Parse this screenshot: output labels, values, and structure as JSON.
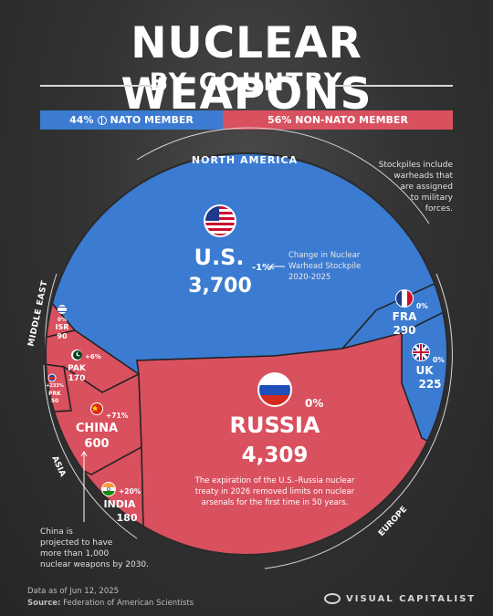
{
  "title_line1": "NUCLEAR WEAPONS",
  "title_line2": "BY COUNTRY",
  "membership": {
    "nato_pct": "44%",
    "nato_label": "NATO MEMBER",
    "non_nato_pct": "56%",
    "non_nato_label": "NON-NATO MEMBER",
    "nato_color": "#3b7bd1",
    "non_nato_color": "#d9505f"
  },
  "regions": {
    "north_america": "NORTH AMERICA",
    "middle_east": "MIDDLE EAST",
    "asia": "ASIA",
    "europe": "EUROPE"
  },
  "chart_data": {
    "type": "voronoi-treemap",
    "title": "NUCLEAR WEAPONS BY COUNTRY",
    "unit": "nuclear warheads",
    "change_period": "2020-2025",
    "countries": [
      {
        "name": "U.S.",
        "warheads": 3700,
        "warheads_label": "3,700",
        "change": "-1%",
        "nato": true,
        "region": "NORTH AMERICA",
        "flag": "us-flag-icon"
      },
      {
        "name": "FRA",
        "warheads": 290,
        "warheads_label": "290",
        "change": "0%",
        "nato": true,
        "region": "EUROPE",
        "flag": "france-flag-icon"
      },
      {
        "name": "UK",
        "warheads": 225,
        "warheads_label": "225",
        "change": "0%",
        "nato": true,
        "region": "EUROPE",
        "flag": "uk-flag-icon"
      },
      {
        "name": "RUSSIA",
        "warheads": 4309,
        "warheads_label": "4,309",
        "change": "0%",
        "nato": false,
        "region": "EUROPE",
        "flag": "russia-flag-icon"
      },
      {
        "name": "CHINA",
        "warheads": 600,
        "warheads_label": "600",
        "change": "+71%",
        "nato": false,
        "region": "ASIA",
        "flag": "china-flag-icon"
      },
      {
        "name": "INDIA",
        "warheads": 180,
        "warheads_label": "180",
        "change": "+20%",
        "nato": false,
        "region": "ASIA",
        "flag": "india-flag-icon"
      },
      {
        "name": "PAK",
        "warheads": 170,
        "warheads_label": "170",
        "change": "+6%",
        "nato": false,
        "region": "ASIA",
        "flag": "pakistan-flag-icon"
      },
      {
        "name": "PRK",
        "warheads": 50,
        "warheads_label": "50",
        "change": "+233%",
        "nato": false,
        "region": "ASIA",
        "flag": "north-korea-flag-icon"
      },
      {
        "name": "ISR",
        "warheads": 90,
        "warheads_label": "90",
        "change": "0%",
        "nato": false,
        "region": "MIDDLE EAST",
        "flag": "israel-flag-icon"
      }
    ]
  },
  "annotations": {
    "stockpiles": [
      "Stockpiles include",
      "warheads that",
      "are assigned",
      "to military",
      "forces."
    ],
    "change_legend": [
      "Change in Nuclear",
      "Warhead Stockpile",
      "2020-2025"
    ],
    "russia_note": [
      "The expiration of the U.S.–Russia nuclear",
      "treaty in 2026 removed limits on nuclear",
      "arsenals for the first time in 50 years."
    ],
    "china_note": [
      "China is",
      "projected to have",
      "more than 1,000",
      "nuclear weapons by 2030."
    ]
  },
  "footer": {
    "date": "Data as of Jun 12, 2025",
    "source_label": "Source:",
    "source": "Federation of American Scientists",
    "brand": "VISUAL CAPITALIST"
  }
}
